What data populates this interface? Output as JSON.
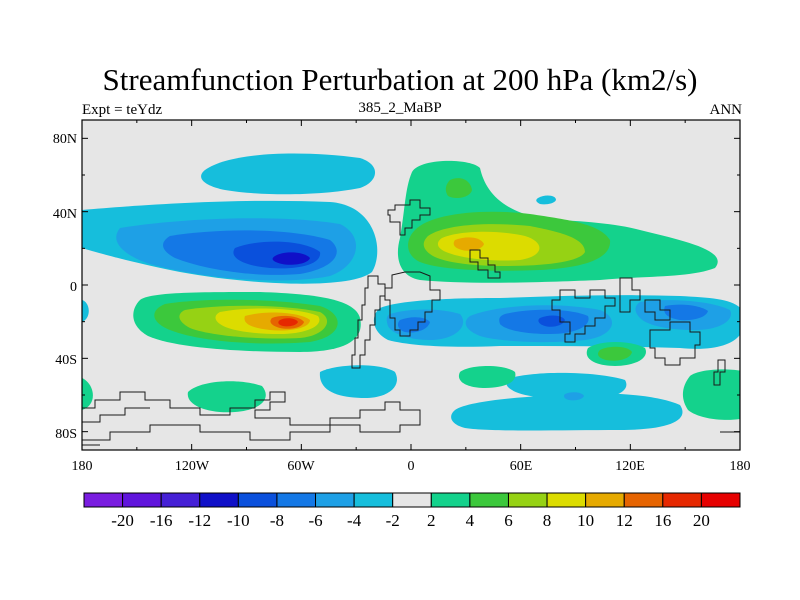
{
  "title": "Streamfunction Perturbation at 200 hPa (km2/s)",
  "left_subtitle": "Expt = teYdz",
  "center_subtitle": "385_2_MaBP",
  "right_subtitle": "ANN",
  "lat_ticks": [
    "80N",
    "40N",
    "0",
    "40S",
    "80S"
  ],
  "lon_ticks": [
    "180",
    "120W",
    "60W",
    "0",
    "60E",
    "120E",
    "180"
  ],
  "colorbar": {
    "labels": [
      "-20",
      "-16",
      "-12",
      "-10",
      "-8",
      "-6",
      "-4",
      "-2",
      "2",
      "4",
      "6",
      "8",
      "10",
      "12",
      "16",
      "20"
    ],
    "colors": [
      "#7a1de0",
      "#6015dc",
      "#4520d6",
      "#1010c8",
      "#0a50dc",
      "#1478e6",
      "#1ea0e6",
      "#16bedc",
      "#e6e6e6",
      "#14d28c",
      "#3cc83c",
      "#96d214",
      "#dcdc00",
      "#e6aa00",
      "#e66400",
      "#e62800",
      "#e60000"
    ]
  },
  "colors": {
    "background": "#e6e6e6",
    "coast": "#1a1a1a"
  }
}
